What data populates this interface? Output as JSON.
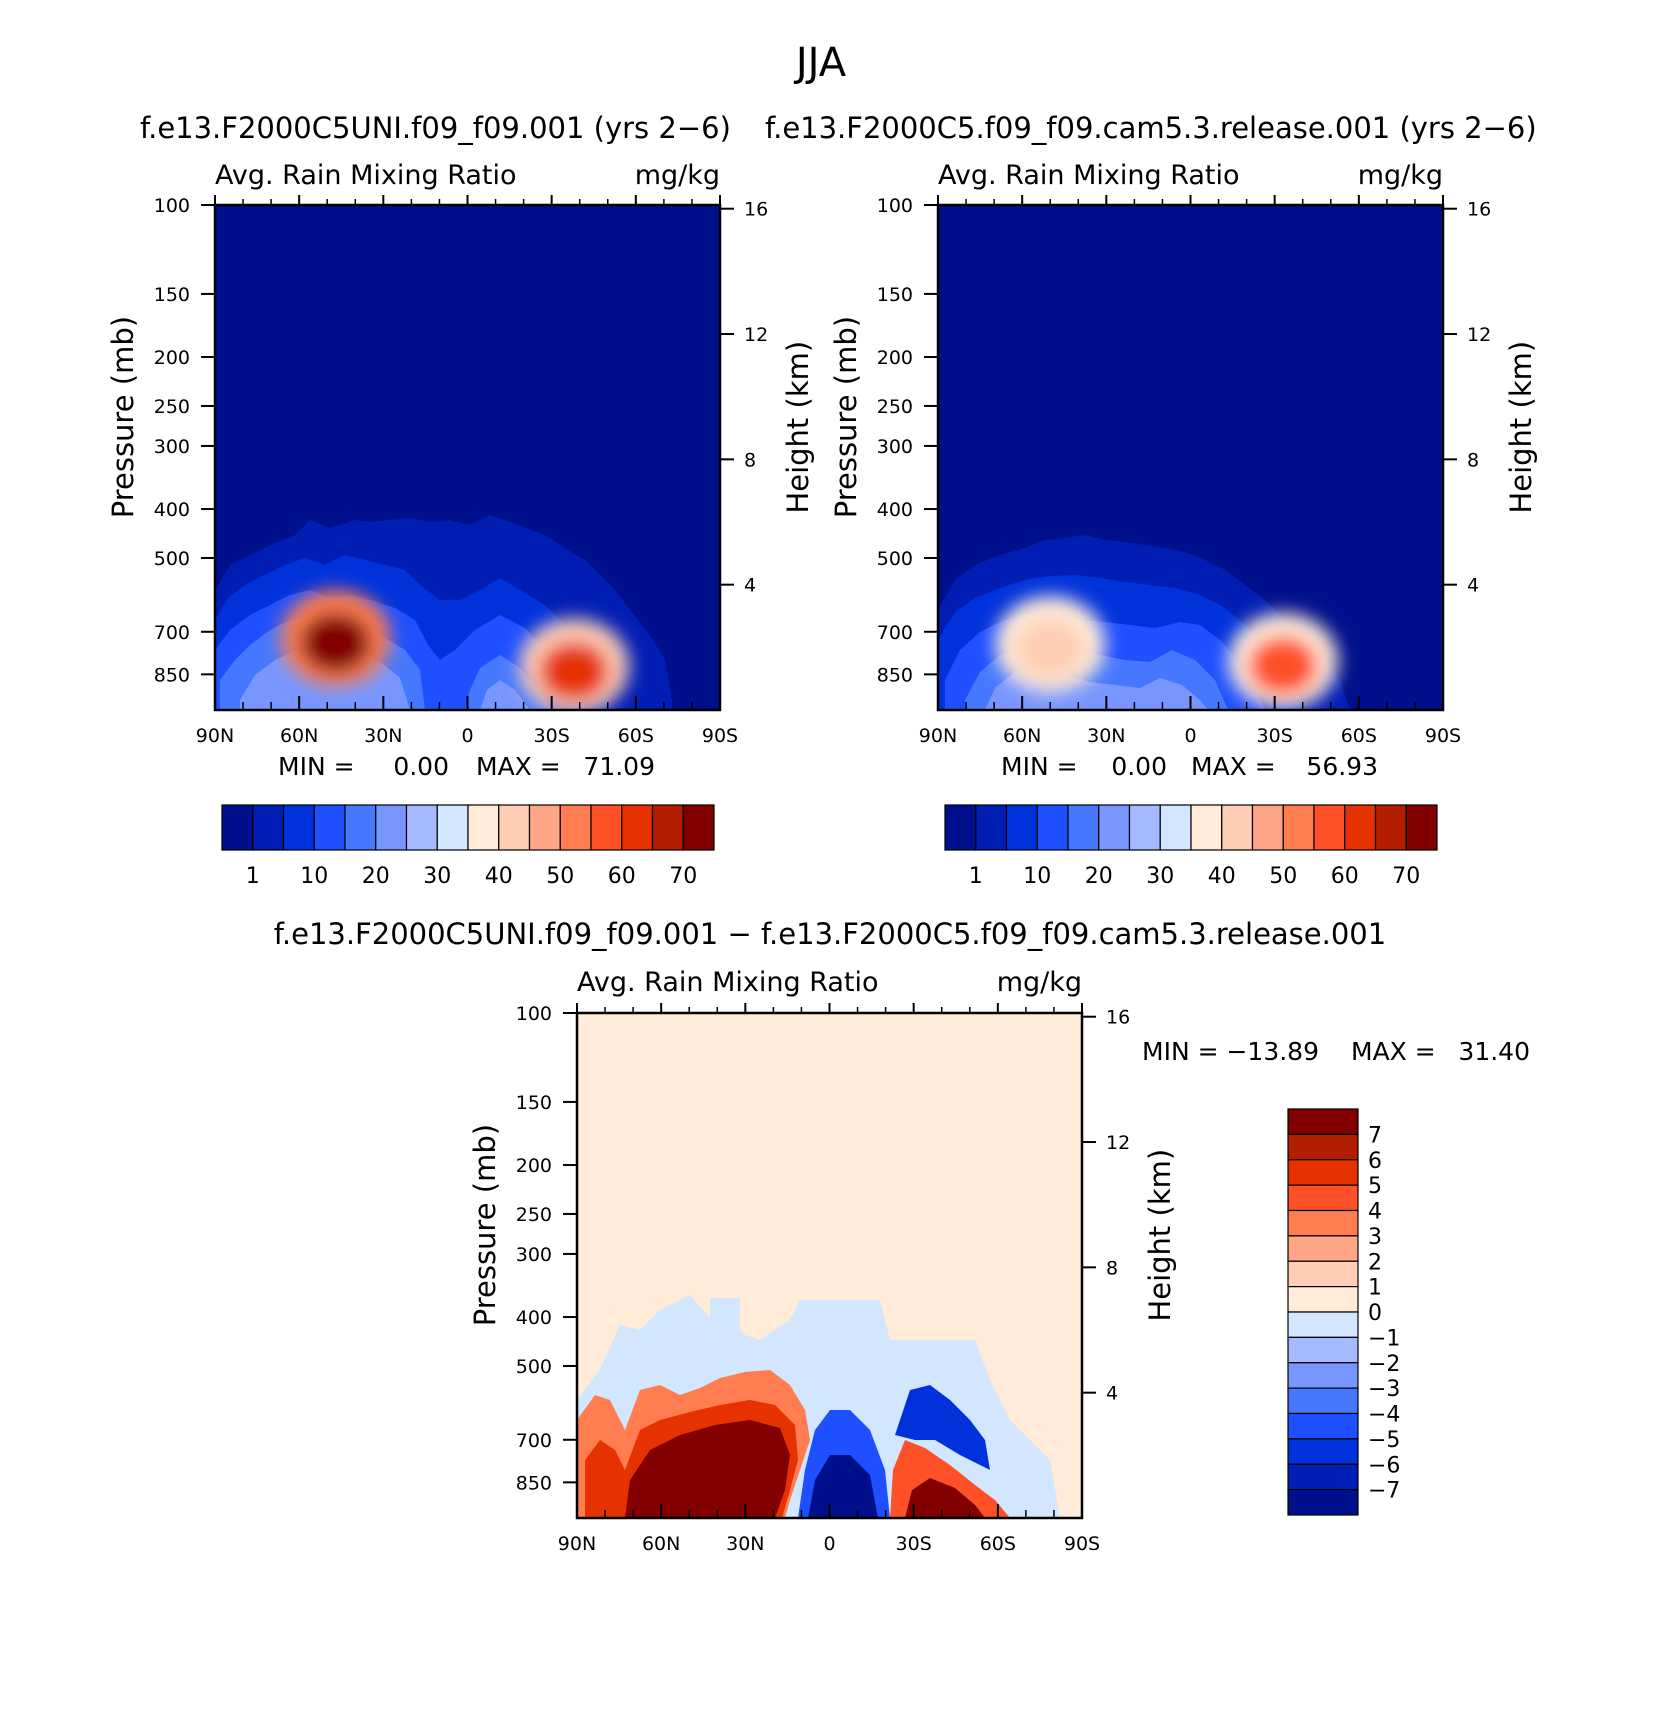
{
  "figure": {
    "title": "JJA"
  },
  "colors": {
    "sequential": [
      "#000f8c",
      "#001eb4",
      "#0032dc",
      "#1e50ff",
      "#4678ff",
      "#7896ff",
      "#a5b9ff",
      "#d2e6ff",
      "#ffebd7",
      "#ffcdb4",
      "#ffa587",
      "#ff7d50",
      "#ff5028",
      "#e63200",
      "#b41e00",
      "#820000"
    ],
    "diverging": [
      "#000f8c",
      "#001eb4",
      "#0032dc",
      "#1e50ff",
      "#4678ff",
      "#7896ff",
      "#a5b9ff",
      "#d2e6ff",
      "#ffebd7",
      "#ffcdb4",
      "#ffa587",
      "#ff7d50",
      "#ff5028",
      "#e63200",
      "#b41e00",
      "#820000"
    ]
  },
  "chart_data": [
    {
      "type": "heatmap",
      "title": "f.e13.F2000C5UNI.f09_f09.001 (yrs 2-6)",
      "left_label": "Avg. Rain Mixing Ratio",
      "right_label": "mg/kg",
      "xlabel": "",
      "ylabel": "Pressure (mb)",
      "y2label": "Height (km)",
      "xticks": [
        "90N",
        "60N",
        "30N",
        "0",
        "30S",
        "60S",
        "90S"
      ],
      "yticks": [
        "100",
        "150",
        "200",
        "250",
        "300",
        "400",
        "500",
        "700",
        "850"
      ],
      "y2ticks": [
        "4",
        "8",
        "12",
        "16"
      ],
      "stats": {
        "min_label": "MIN =",
        "min": "0.00",
        "max_label": "MAX =",
        "max": "71.09"
      },
      "colorbar_labels": [
        "1",
        "10",
        "20",
        "30",
        "40",
        "50",
        "60",
        "70"
      ],
      "features": [
        {
          "lat": 47,
          "p": 720,
          "value": 71.09
        },
        {
          "lat": -38,
          "p": 820,
          "value": 62
        }
      ]
    },
    {
      "type": "heatmap",
      "title": "f.e13.F2000C5.f09_f09.cam5.3.release.001 (yrs 2-6)",
      "left_label": "Avg. Rain Mixing Ratio",
      "right_label": "mg/kg",
      "xlabel": "",
      "ylabel": "Pressure (mb)",
      "y2label": "Height (km)",
      "xticks": [
        "90N",
        "60N",
        "30N",
        "0",
        "30S",
        "60S",
        "90S"
      ],
      "yticks": [
        "100",
        "150",
        "200",
        "250",
        "300",
        "400",
        "500",
        "700",
        "850"
      ],
      "y2ticks": [
        "4",
        "8",
        "12",
        "16"
      ],
      "stats": {
        "min_label": "MIN =",
        "min": "0.00",
        "max_label": "MAX =",
        "max": "56.93"
      },
      "colorbar_labels": [
        "1",
        "10",
        "20",
        "30",
        "40",
        "50",
        "60",
        "70"
      ],
      "features": [
        {
          "lat": 50,
          "p": 740,
          "value": 40
        },
        {
          "lat": -33,
          "p": 800,
          "value": 56.93
        }
      ]
    },
    {
      "type": "heatmap",
      "title": "f.e13.F2000C5UNI.f09_f09.001 - f.e13.F2000C5.f09_f09.cam5.3.release.001",
      "left_label": "Avg. Rain Mixing Ratio",
      "right_label": "mg/kg",
      "xlabel": "",
      "ylabel": "Pressure (mb)",
      "y2label": "Height (km)",
      "xticks": [
        "90N",
        "60N",
        "30N",
        "0",
        "30S",
        "60S",
        "90S"
      ],
      "yticks": [
        "100",
        "150",
        "200",
        "250",
        "300",
        "400",
        "500",
        "700",
        "850"
      ],
      "y2ticks": [
        "4",
        "8",
        "12",
        "16"
      ],
      "stats": {
        "min_label": "MIN =",
        "min": "-13.89",
        "max_label": "MAX =",
        "max": "31.40"
      },
      "colorbar_labels": [
        "7",
        "6",
        "5",
        "4",
        "3",
        "2",
        "1",
        "0",
        "-1",
        "-2",
        "-3",
        "-4",
        "-5",
        "-6",
        "-7"
      ],
      "features": [
        {
          "lat": 45,
          "p": 750,
          "value": 31.4
        },
        {
          "lat": 0,
          "p": 780,
          "value": -13.89
        },
        {
          "lat": -40,
          "p": 830,
          "value": 12
        }
      ]
    }
  ]
}
